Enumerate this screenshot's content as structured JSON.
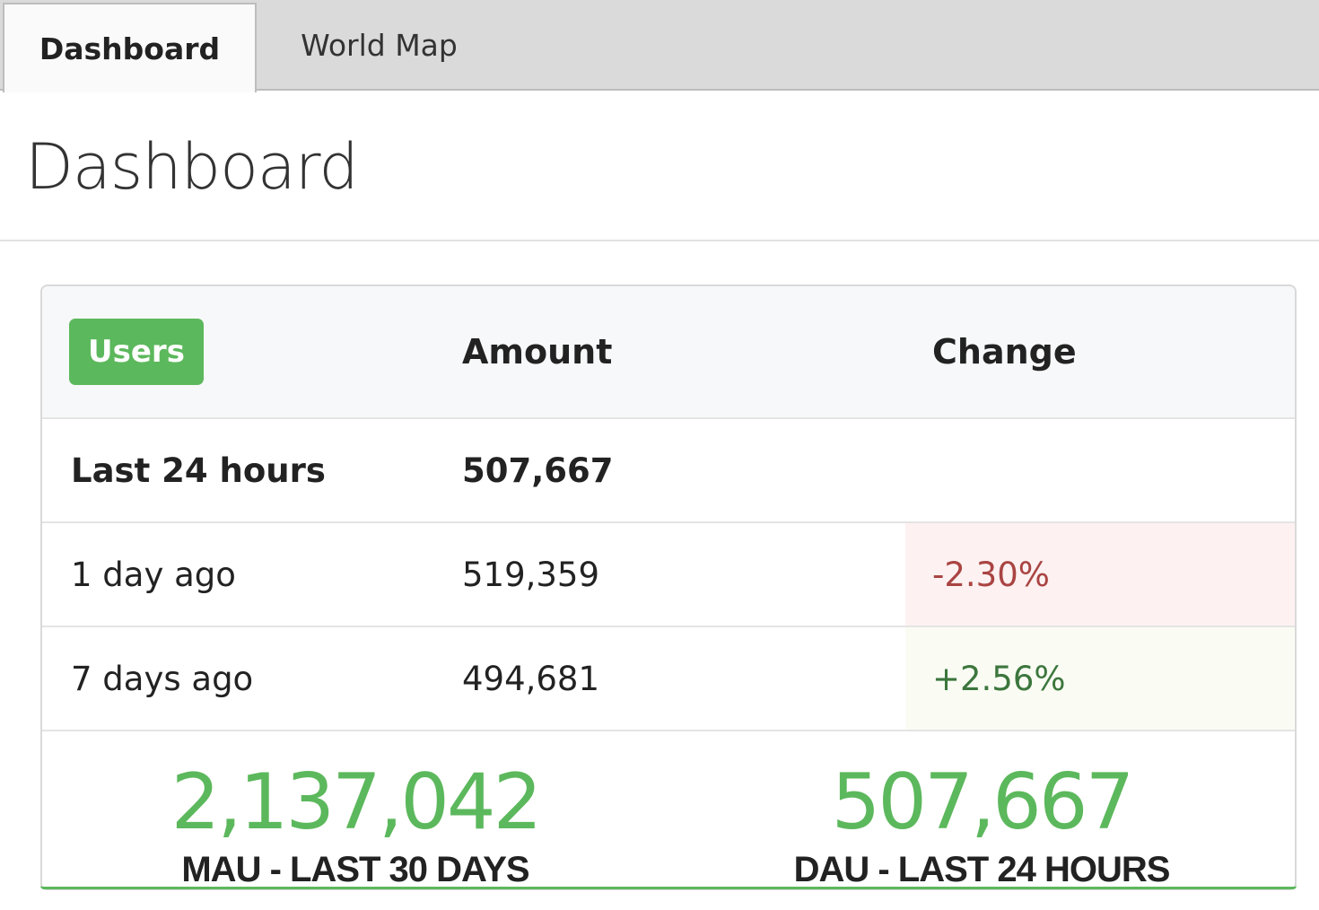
{
  "tabs": [
    {
      "label": "Dashboard",
      "active": true
    },
    {
      "label": "World Map",
      "active": false
    }
  ],
  "page": {
    "title": "Dashboard"
  },
  "table": {
    "badge": "Users",
    "headers": {
      "amount": "Amount",
      "change": "Change"
    },
    "rows": [
      {
        "label": "Last 24 hours",
        "amount": "507,667",
        "change": ""
      },
      {
        "label": "1 day ago",
        "amount": "519,359",
        "change": "-2.30%"
      },
      {
        "label": "7 days ago",
        "amount": "494,681",
        "change": "+2.56%"
      }
    ]
  },
  "stats": {
    "mau": {
      "value": "2,137,042",
      "label": "MAU - LAST 30 DAYS"
    },
    "dau": {
      "value": "507,667",
      "label": "DAU - LAST 24 HOURS"
    }
  },
  "colors": {
    "accent_green": "#5cb85c",
    "negative_text": "#a94442",
    "negative_bg": "#fdf1f1",
    "positive_text": "#3c763d",
    "positive_bg": "#fafcf4"
  }
}
